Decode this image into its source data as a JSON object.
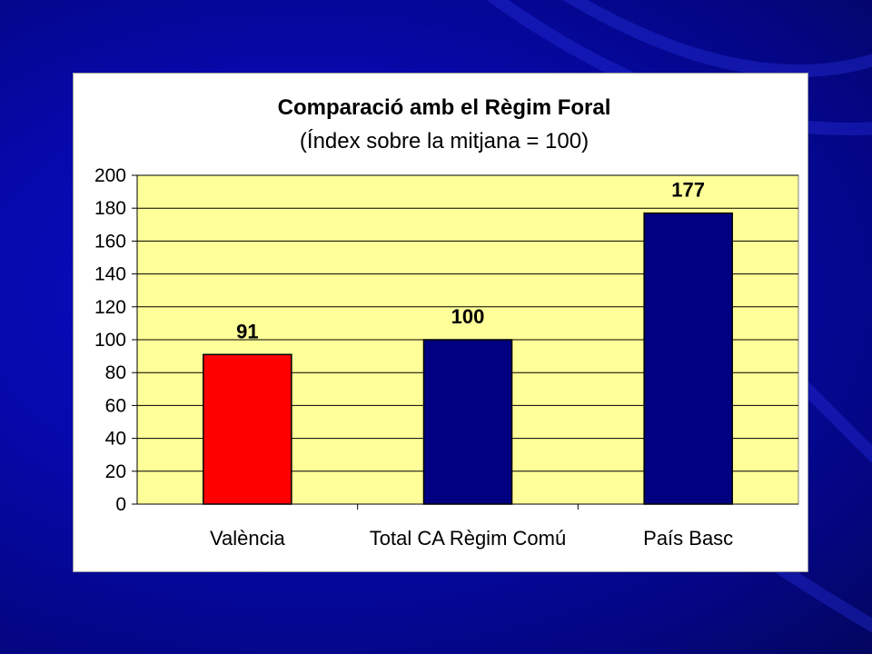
{
  "chart_data": {
    "type": "bar",
    "title": "Comparació amb el Règim Foral",
    "subtitle": "(Índex sobre la mitjana = 100)",
    "categories": [
      "València",
      "Total CA Règim Comú",
      "País Basc"
    ],
    "values": [
      91,
      100,
      177
    ],
    "data_labels": [
      "91",
      "100",
      "177"
    ],
    "bar_colors": [
      "#ff0000",
      "#000080",
      "#000080"
    ],
    "ylim": [
      0,
      200
    ],
    "yticks": [
      0,
      20,
      40,
      60,
      80,
      100,
      120,
      140,
      160,
      180,
      200
    ],
    "ytick_labels": [
      "0",
      "20",
      "40",
      "60",
      "80",
      "100",
      "120",
      "140",
      "160",
      "180",
      "200"
    ],
    "grid": true,
    "legend": false,
    "plot_background": "#ffff99",
    "xlabel": "",
    "ylabel": ""
  },
  "colors": {
    "slide_background": "#0608a8",
    "chart_background": "#ffffff",
    "gridline": "#000000"
  }
}
